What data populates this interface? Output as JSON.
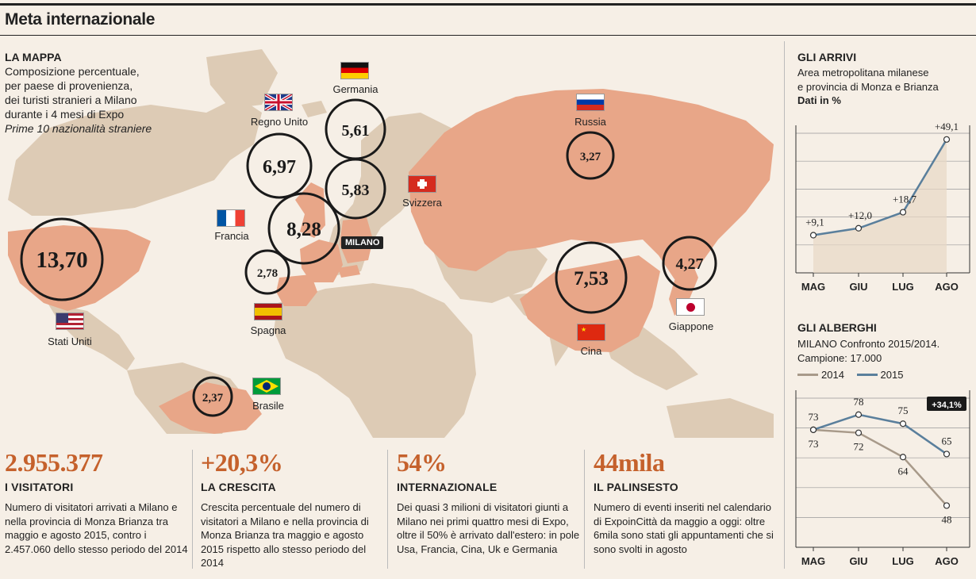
{
  "title": "Meta internazionale",
  "map": {
    "heading": "LA MAPPA",
    "lines": [
      "Composizione percentuale,",
      "per paese di provenienza,",
      "dei turisti stranieri a Milano",
      "durante i 4 mesi di Expo"
    ],
    "subtitle": "Prime 10 nazionalità straniere",
    "city_label": "MILANO"
  },
  "chart_data": [
    {
      "type": "bubble-map",
      "title": "LA MAPPA",
      "unit": "%",
      "countries": [
        {
          "name": "Stati Uniti",
          "value": "13,70"
        },
        {
          "name": "Cina",
          "value": "7,53"
        },
        {
          "name": "Francia",
          "value": "8,28"
        },
        {
          "name": "Regno Unito",
          "value": "6,97"
        },
        {
          "name": "Svizzera",
          "value": "5,83"
        },
        {
          "name": "Germania",
          "value": "5,61"
        },
        {
          "name": "Giappone",
          "value": "4,27"
        },
        {
          "name": "Russia",
          "value": "3,27"
        },
        {
          "name": "Spagna",
          "value": "2,78"
        },
        {
          "name": "Brasile",
          "value": "2,37"
        }
      ]
    },
    {
      "type": "line",
      "title": "GLI ARRIVI",
      "subtitle_lines": [
        "Area metropolitana milanese",
        "e provincia di Monza e Brianza"
      ],
      "unit_note": "Dati in %",
      "categories": [
        "MAG",
        "GIU",
        "LUG",
        "AGO"
      ],
      "series": [
        {
          "values": [
            9.1,
            12.0,
            18.7,
            49.1
          ]
        }
      ],
      "labels": [
        "+9,1",
        "+12,0",
        "+18,7",
        "+49,1"
      ],
      "color": "#5a7f9c"
    },
    {
      "type": "line",
      "title": "GLI ALBERGHI",
      "subtitle_lines": [
        "MILANO Confronto 2015/2014.",
        "Campione: 17.000"
      ],
      "categories": [
        "MAG",
        "GIU",
        "LUG",
        "AGO"
      ],
      "series": [
        {
          "name": "2014",
          "values": [
            73,
            72,
            64,
            48
          ],
          "color": "#a89a8a"
        },
        {
          "name": "2015",
          "values": [
            73,
            78,
            75,
            65
          ],
          "color": "#5a7f9c"
        }
      ],
      "badge": "+34,1%"
    }
  ],
  "stats": [
    {
      "big": "2.955.377",
      "head": "I VISITATORI",
      "desc": "Numero di visitatori arrivati a Milano e nella provincia di Monza Brianza tra maggio e agosto 2015, contro i 2.457.060 dello stesso periodo del 2014"
    },
    {
      "big": "+20,3%",
      "head": "LA CRESCITA",
      "desc": "Crescita percentuale del numero di visitatori a Milano e nella provincia di Monza Brianza tra maggio e agosto 2015 rispetto allo stesso periodo del 2014"
    },
    {
      "big": "54%",
      "head": "INTERNAZIONALE",
      "desc": "Dei quasi 3 milioni di visitatori giunti a Milano nei primi quattro mesi di Expo, oltre il 50% è arrivato dall'estero: in pole Usa, Francia, Cina, Uk e Germania"
    },
    {
      "big": "44mila",
      "head": "IL PALINSESTO",
      "desc": "Numero di eventi inseriti nel calendario di ExpoinCittà da maggio a oggi: oltre 6mila sono stati gli appuntamenti che si sono svolti in agosto"
    }
  ],
  "colors": {
    "highlight": "#e8a688",
    "land": "#ddcbb5",
    "accent": "#c5612c",
    "line": "#5a7f9c"
  }
}
